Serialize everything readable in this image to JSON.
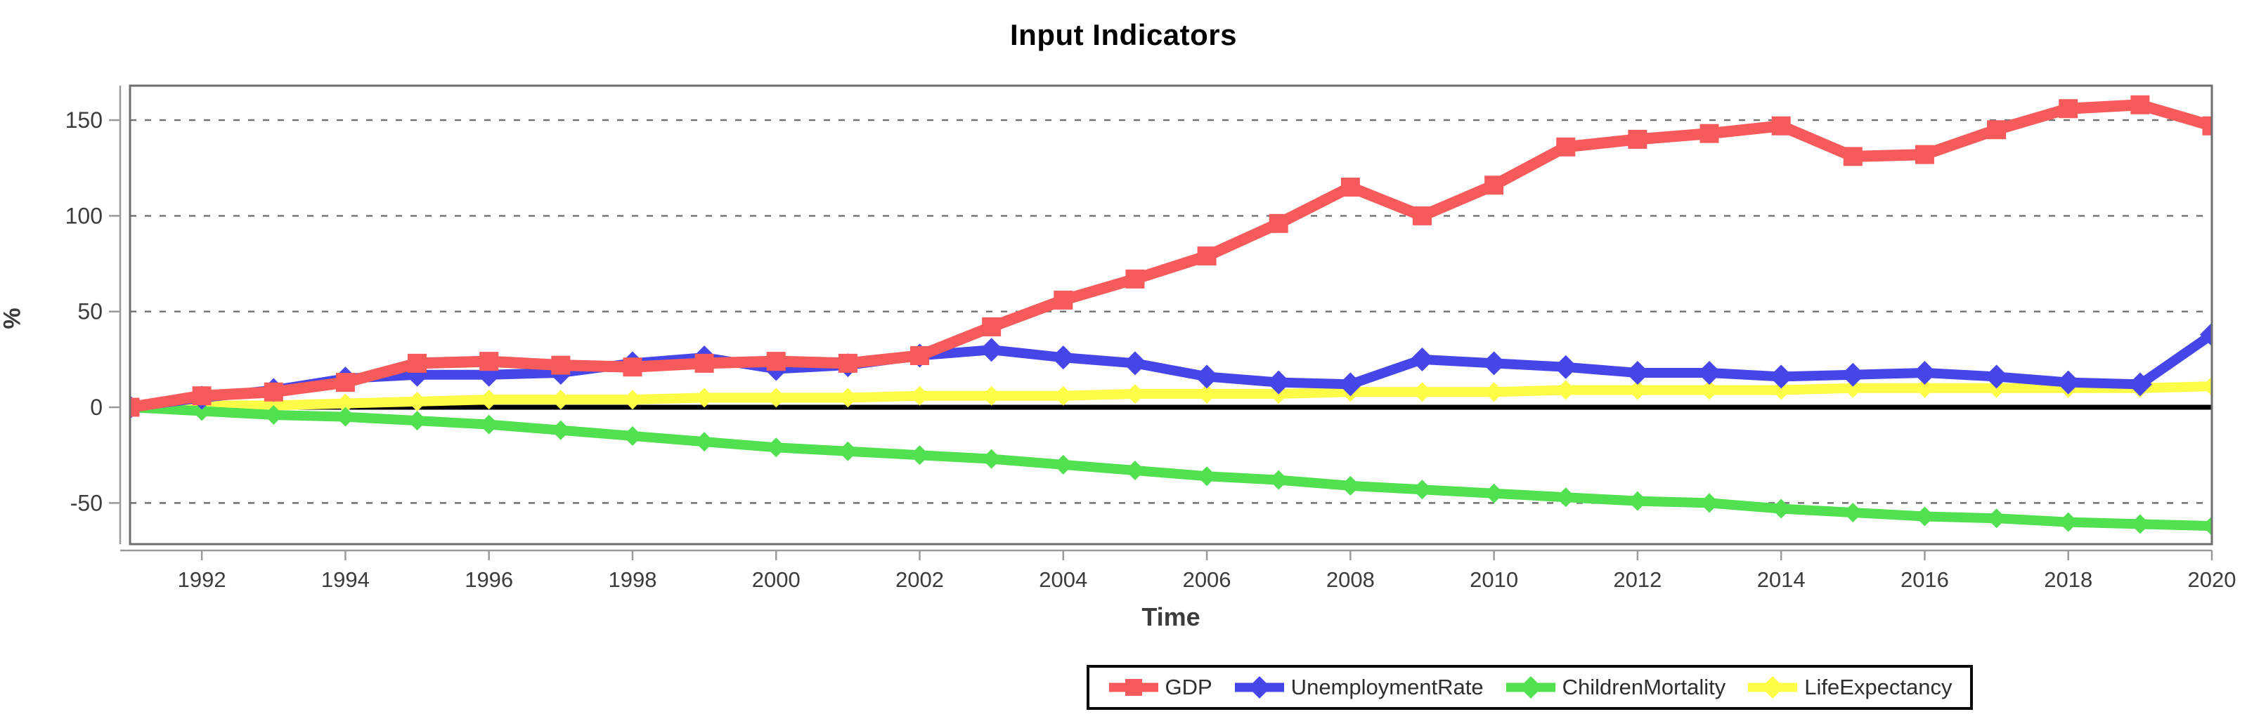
{
  "header": {
    "title": "Input Indicators"
  },
  "chart_data": {
    "type": "line",
    "title": "Input Indicators",
    "xlabel": "Time",
    "ylabel": "%",
    "x": [
      1991,
      1992,
      1993,
      1994,
      1995,
      1996,
      1997,
      1998,
      1999,
      2000,
      2001,
      2002,
      2003,
      2004,
      2005,
      2006,
      2007,
      2008,
      2009,
      2010,
      2011,
      2012,
      2013,
      2014,
      2015,
      2016,
      2017,
      2018,
      2019,
      2020
    ],
    "xticks": [
      1992,
      1994,
      1996,
      1998,
      2000,
      2002,
      2004,
      2006,
      2008,
      2010,
      2012,
      2014,
      2016,
      2018,
      2020
    ],
    "yticks": [
      -50,
      0,
      50,
      100,
      150
    ],
    "xlim": [
      1991,
      2020
    ],
    "ylim": [
      -71.5,
      168
    ],
    "grid": "horizontal-dashed",
    "zero_line": true,
    "legend_position": "bottom-center",
    "background": "#ffffff",
    "grid_color": "#707070",
    "axis_color": "#9a9a9a",
    "border_color": "#6e6e6e",
    "zero_line_color": "#000000",
    "series": [
      {
        "name": "GDP",
        "color": "#f75a5a",
        "marker": "square",
        "values": [
          0,
          6,
          8,
          13,
          23,
          24,
          22,
          21,
          23,
          24,
          23,
          27,
          42,
          56,
          67,
          79,
          96,
          115,
          100,
          116,
          136,
          140,
          143,
          147,
          131,
          132,
          145,
          156,
          158,
          147
        ]
      },
      {
        "name": "UnemploymentRate",
        "color": "#4646e8",
        "marker": "diamond",
        "values": [
          0,
          5,
          9,
          15,
          17,
          17,
          18,
          23,
          26,
          20,
          22,
          27,
          30,
          26,
          23,
          16,
          13,
          12,
          25,
          23,
          21,
          18,
          18,
          16,
          17,
          18,
          16,
          13,
          12,
          38
        ]
      },
      {
        "name": "ChildrenMortality",
        "color": "#50e050",
        "marker": "diamond",
        "values": [
          0,
          -2,
          -4,
          -5,
          -7,
          -9,
          -12,
          -15,
          -18,
          -21,
          -23,
          -25,
          -27,
          -30,
          -33,
          -36,
          -38,
          -41,
          -43,
          -45,
          -47,
          -49,
          -50,
          -53,
          -55,
          -57,
          -58,
          -60,
          -61,
          -62
        ]
      },
      {
        "name": "LifeExpectancy",
        "color": "#fdfd48",
        "marker": "diamond",
        "values": [
          0,
          1,
          1,
          2,
          3,
          4,
          4,
          4,
          5,
          5,
          5,
          6,
          6,
          6,
          7,
          7,
          7,
          8,
          8,
          8,
          9,
          9,
          9,
          9,
          10,
          10,
          10,
          10,
          10,
          11
        ]
      }
    ]
  }
}
